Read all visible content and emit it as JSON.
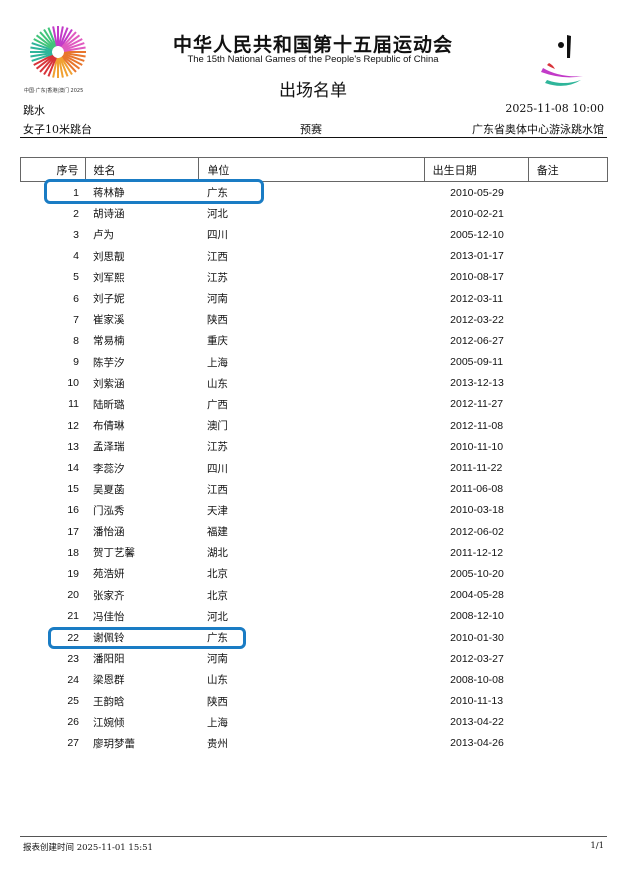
{
  "header": {
    "title_cn": "中华人民共和国第十五届运动会",
    "title_en": "The 15th National Games of the People's Republic of China",
    "logo_text": "中国·广东|香港|澳门 2025",
    "doc_title": "出场名单"
  },
  "meta": {
    "sport": "跳水",
    "datetime": "2025-11-08 10:00",
    "event": "女子10米跳台",
    "phase": "预赛",
    "venue": "广东省奥体中心游泳跳水馆"
  },
  "table": {
    "columns": [
      "序号",
      "姓名",
      "单位",
      "出生日期",
      "备注"
    ],
    "rows": [
      [
        "1",
        "蒋林静",
        "广东",
        "2010-05-29",
        ""
      ],
      [
        "2",
        "胡诗涵",
        "河北",
        "2010-02-21",
        ""
      ],
      [
        "3",
        "卢为",
        "四川",
        "2005-12-10",
        ""
      ],
      [
        "4",
        "刘思靓",
        "江西",
        "2013-01-17",
        ""
      ],
      [
        "5",
        "刘军熙",
        "江苏",
        "2010-08-17",
        ""
      ],
      [
        "6",
        "刘子妮",
        "河南",
        "2012-03-11",
        ""
      ],
      [
        "7",
        "崔家溪",
        "陕西",
        "2012-03-22",
        ""
      ],
      [
        "8",
        "常易楠",
        "重庆",
        "2012-06-27",
        ""
      ],
      [
        "9",
        "陈芋汐",
        "上海",
        "2005-09-11",
        ""
      ],
      [
        "10",
        "刘紫涵",
        "山东",
        "2013-12-13",
        ""
      ],
      [
        "11",
        "陆昕璐",
        "广西",
        "2012-11-27",
        ""
      ],
      [
        "12",
        "布倩琳",
        "澳门",
        "2012-11-08",
        ""
      ],
      [
        "13",
        "孟泽瑞",
        "江苏",
        "2010-11-10",
        ""
      ],
      [
        "14",
        "李蕊汐",
        "四川",
        "2011-11-22",
        ""
      ],
      [
        "15",
        "吴夏菡",
        "江西",
        "2011-06-08",
        ""
      ],
      [
        "16",
        "门泓秀",
        "天津",
        "2010-03-18",
        ""
      ],
      [
        "17",
        "潘怡涵",
        "福建",
        "2012-06-02",
        ""
      ],
      [
        "18",
        "贺丁艺馨",
        "湖北",
        "2011-12-12",
        ""
      ],
      [
        "19",
        "苑浩妍",
        "北京",
        "2005-10-20",
        ""
      ],
      [
        "20",
        "张家齐",
        "北京",
        "2004-05-28",
        ""
      ],
      [
        "21",
        "冯佳怡",
        "河北",
        "2008-12-10",
        ""
      ],
      [
        "22",
        "谢佩铃",
        "广东",
        "2010-01-30",
        ""
      ],
      [
        "23",
        "潘阳阳",
        "河南",
        "2012-03-27",
        ""
      ],
      [
        "24",
        "梁恩群",
        "山东",
        "2008-10-08",
        ""
      ],
      [
        "25",
        "王韵晗",
        "陕西",
        "2010-11-13",
        ""
      ],
      [
        "26",
        "江婉倾",
        "上海",
        "2013-04-22",
        ""
      ],
      [
        "27",
        "廖玥梦蕾",
        "贵州",
        "2013-04-26",
        ""
      ]
    ],
    "highlighted_rows": [
      1,
      22
    ],
    "highlight_color": "#1a7cc4"
  },
  "footer": {
    "created": "报表创建时间 2025-11-01 15:51",
    "page": "1/1"
  }
}
